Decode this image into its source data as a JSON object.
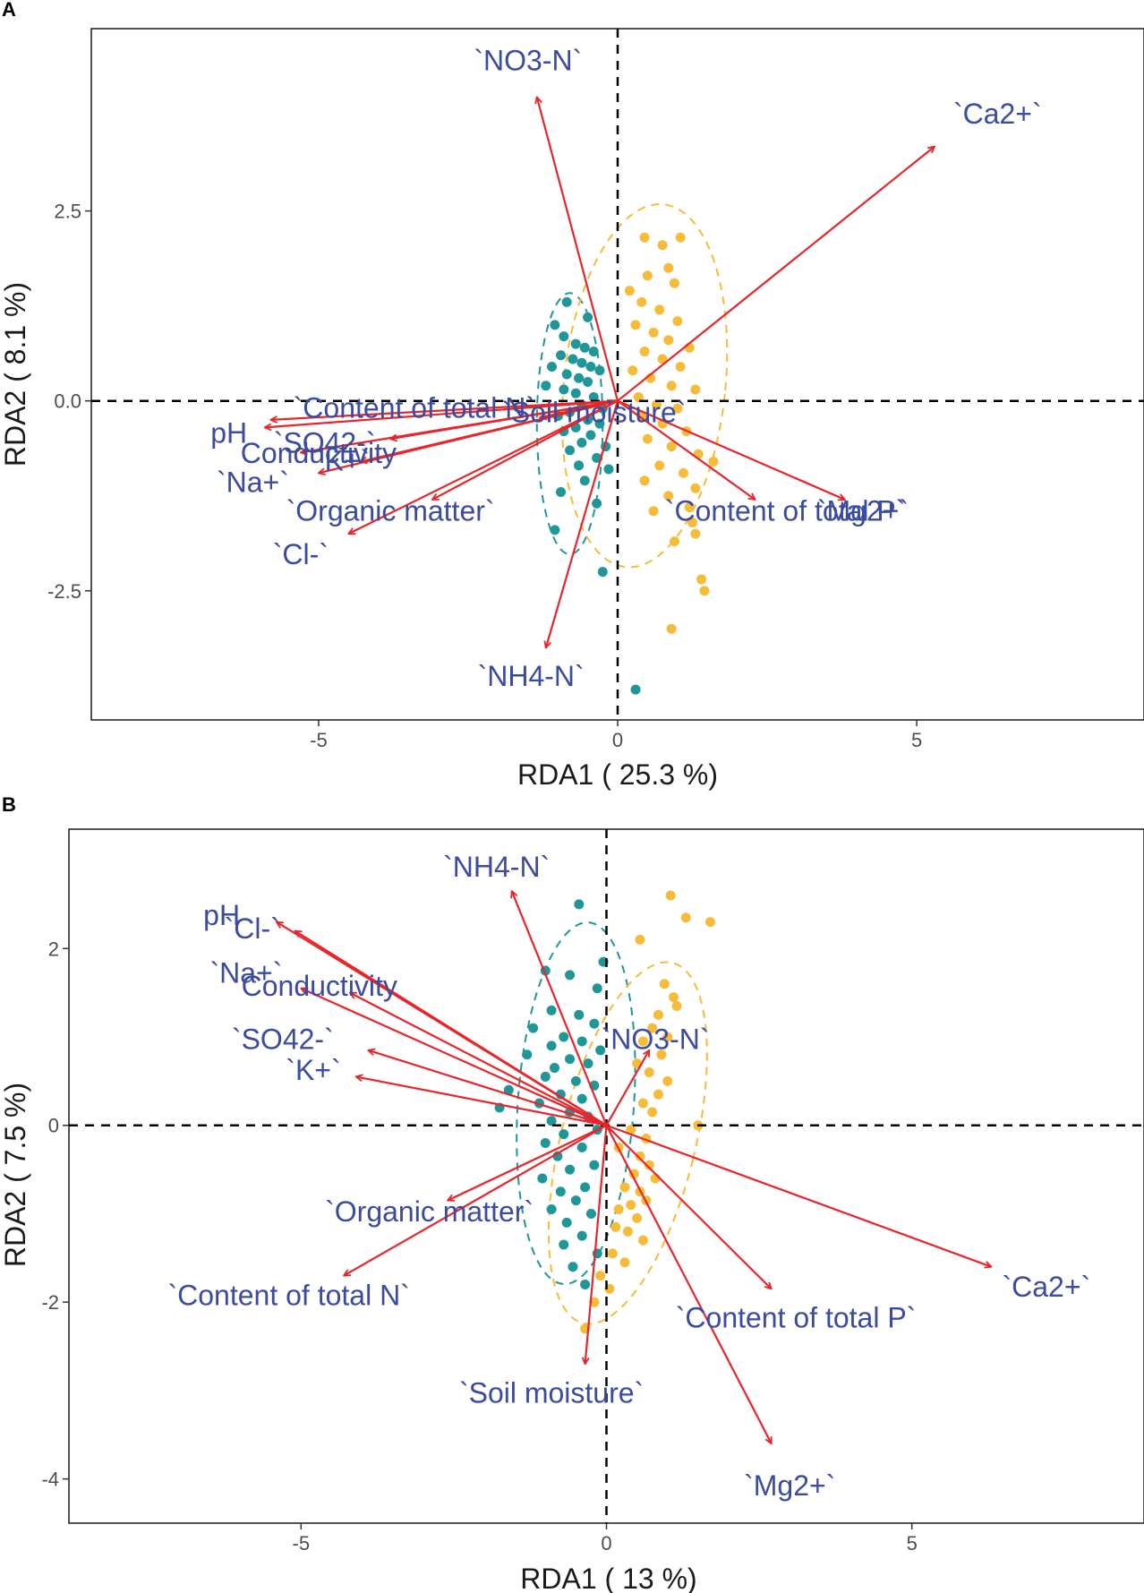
{
  "chart_data": [
    {
      "type": "scatter",
      "panel": "A",
      "xlabel": "RDA1 ( 25.3 %)",
      "ylabel": "RDA2 ( 8.1 %)",
      "xlim": [
        -8.8,
        8.8
      ],
      "ylim": [
        -4.2,
        4.9
      ],
      "xticks": [
        -5,
        0,
        5
      ],
      "yticks": [
        -2.5,
        0.0,
        2.5
      ],
      "ytick_labels": [
        "-2.5",
        "0.0",
        "2.5"
      ],
      "colors": {
        "group1": "#1f9697",
        "group2": "#f7bb3a",
        "arrow": "#e8252a",
        "label": "#3b4ba0"
      },
      "arrows": [
        {
          "label": "`NO3-N`",
          "x": -1.35,
          "y": 4.0,
          "lx": -1.5,
          "ly": 4.45
        },
        {
          "label": "`Ca2+`",
          "x": 5.3,
          "y": 3.35,
          "lx": 6.35,
          "ly": 3.75
        },
        {
          "label": "`Content of total N`",
          "x": -5.8,
          "y": -0.25,
          "lx": -3.4,
          "ly": -0.12
        },
        {
          "label": "`Soil moisture`",
          "x": -1.3,
          "y": -0.22,
          "lx": -0.4,
          "ly": -0.18
        },
        {
          "label": "pH",
          "x": -5.9,
          "y": -0.35,
          "lx": -6.5,
          "ly": -0.45
        },
        {
          "label": "`SO42-`",
          "x": -3.8,
          "y": -0.5,
          "lx": -4.9,
          "ly": -0.58
        },
        {
          "label": "Conductivity",
          "x": -5.3,
          "y": -0.68,
          "lx": -5.0,
          "ly": -0.72
        },
        {
          "label": "`K+`",
          "x": -4.3,
          "y": -0.8,
          "lx": -4.6,
          "ly": -0.82
        },
        {
          "label": "`Na+`",
          "x": -5.0,
          "y": -0.95,
          "lx": -6.1,
          "ly": -1.1
        },
        {
          "label": "`Organic matter`",
          "x": -3.1,
          "y": -1.3,
          "lx": -3.8,
          "ly": -1.48
        },
        {
          "label": "`Cl-`",
          "x": -4.5,
          "y": -1.75,
          "lx": -5.3,
          "ly": -2.05
        },
        {
          "label": "`Content of total P`",
          "x": 2.3,
          "y": -1.3,
          "lx": 2.8,
          "ly": -1.48
        },
        {
          "label": "`Mg2+`",
          "x": 3.8,
          "y": -1.3,
          "lx": 4.1,
          "ly": -1.48
        },
        {
          "label": "`NH4-N`",
          "x": -1.2,
          "y": -3.25,
          "lx": -1.45,
          "ly": -3.65
        }
      ],
      "series": [
        {
          "name": "group1",
          "color": "#1f9697",
          "points": [
            [
              -0.85,
              1.3
            ],
            [
              -0.5,
              1.1
            ],
            [
              -1.05,
              1.0
            ],
            [
              -0.9,
              0.85
            ],
            [
              -0.7,
              0.75
            ],
            [
              -0.55,
              0.7
            ],
            [
              -0.4,
              0.65
            ],
            [
              -0.95,
              0.6
            ],
            [
              -0.75,
              0.55
            ],
            [
              -0.6,
              0.5
            ],
            [
              -0.45,
              0.45
            ],
            [
              -1.1,
              0.45
            ],
            [
              -0.3,
              0.4
            ],
            [
              -0.85,
              0.35
            ],
            [
              -0.65,
              0.3
            ],
            [
              -0.5,
              0.25
            ],
            [
              -1.2,
              0.2
            ],
            [
              -0.9,
              0.15
            ],
            [
              -0.7,
              0.1
            ],
            [
              -0.4,
              0.05
            ],
            [
              -0.6,
              -0.05
            ],
            [
              -0.25,
              -0.1
            ],
            [
              -0.8,
              -0.15
            ],
            [
              -1.0,
              -0.2
            ],
            [
              -0.5,
              -0.25
            ],
            [
              -0.3,
              -0.3
            ],
            [
              -0.7,
              -0.35
            ],
            [
              -0.9,
              -0.4
            ],
            [
              -0.45,
              -0.45
            ],
            [
              -0.6,
              -0.55
            ],
            [
              -0.2,
              -0.6
            ],
            [
              -0.8,
              -0.65
            ],
            [
              -0.35,
              -0.75
            ],
            [
              -0.65,
              -0.85
            ],
            [
              -0.15,
              -0.9
            ],
            [
              -0.55,
              -1.05
            ],
            [
              -0.95,
              -1.2
            ],
            [
              -0.35,
              -1.35
            ],
            [
              -1.05,
              -1.7
            ],
            [
              -0.25,
              -2.25
            ],
            [
              0.3,
              -3.8
            ]
          ]
        },
        {
          "name": "group2",
          "color": "#f7bb3a",
          "points": [
            [
              0.45,
              2.15
            ],
            [
              0.75,
              2.05
            ],
            [
              1.05,
              2.15
            ],
            [
              0.85,
              1.75
            ],
            [
              0.5,
              1.65
            ],
            [
              0.95,
              1.55
            ],
            [
              0.2,
              1.45
            ],
            [
              0.4,
              1.3
            ],
            [
              0.7,
              1.2
            ],
            [
              1.0,
              1.05
            ],
            [
              0.3,
              1.0
            ],
            [
              0.6,
              0.9
            ],
            [
              0.85,
              0.8
            ],
            [
              1.2,
              0.7
            ],
            [
              0.45,
              0.65
            ],
            [
              0.75,
              0.55
            ],
            [
              1.05,
              0.45
            ],
            [
              0.25,
              0.4
            ],
            [
              0.55,
              0.3
            ],
            [
              0.9,
              0.2
            ],
            [
              1.3,
              0.15
            ],
            [
              0.35,
              0.05
            ],
            [
              0.65,
              -0.05
            ],
            [
              1.0,
              -0.1
            ],
            [
              0.4,
              -0.2
            ],
            [
              0.75,
              -0.3
            ],
            [
              1.15,
              -0.4
            ],
            [
              0.5,
              -0.5
            ],
            [
              0.9,
              -0.6
            ],
            [
              1.35,
              -0.7
            ],
            [
              1.6,
              -0.8
            ],
            [
              0.7,
              -0.85
            ],
            [
              1.1,
              -0.95
            ],
            [
              0.45,
              -1.05
            ],
            [
              1.3,
              -1.15
            ],
            [
              0.85,
              -1.25
            ],
            [
              1.2,
              -1.4
            ],
            [
              0.6,
              -1.45
            ],
            [
              1.25,
              -1.6
            ],
            [
              1.3,
              -1.75
            ],
            [
              0.95,
              -1.85
            ],
            [
              1.4,
              -2.35
            ],
            [
              1.45,
              -2.5
            ],
            [
              0.9,
              -3.0
            ]
          ]
        }
      ],
      "ellipses": [
        {
          "group": "group1",
          "cx": -0.8,
          "cy": -0.3,
          "rx": 0.55,
          "ry": 1.72
        },
        {
          "group": "group2",
          "cx": 0.45,
          "cy": 0.2,
          "rx": 1.35,
          "ry": 2.4,
          "rotate_deg": 6
        }
      ]
    },
    {
      "type": "scatter",
      "panel": "B",
      "xlabel": "RDA1 ( 13 %)",
      "ylabel": "RDA2 ( 7.5 %)",
      "xlim": [
        -8.8,
        8.8
      ],
      "ylim": [
        -4.5,
        3.35
      ],
      "xticks": [
        -5,
        0,
        5
      ],
      "yticks": [
        -4,
        -2,
        0,
        2
      ],
      "ytick_labels": [
        "-4",
        "-2",
        "0",
        "2"
      ],
      "colors": {
        "group1": "#1f9697",
        "group2": "#f7bb3a",
        "arrow": "#e8252a",
        "label": "#3b4ba0"
      },
      "arrows": [
        {
          "label": "`NH4-N`",
          "x": -1.55,
          "y": 2.65,
          "lx": -1.8,
          "ly": 2.9
        },
        {
          "label": "pH",
          "x": -5.4,
          "y": 2.3,
          "lx": -6.3,
          "ly": 2.35
        },
        {
          "label": "`Cl-`",
          "x": -5.1,
          "y": 2.2,
          "lx": -5.8,
          "ly": 2.2
        },
        {
          "label": "`Na+`",
          "x": -5.0,
          "y": 1.55,
          "lx": -5.9,
          "ly": 1.7
        },
        {
          "label": "Conductivity",
          "x": -4.2,
          "y": 1.5,
          "lx": -4.7,
          "ly": 1.55
        },
        {
          "label": "`SO42-`",
          "x": -3.9,
          "y": 0.85,
          "lx": -5.3,
          "ly": 0.95
        },
        {
          "label": "`K+`",
          "x": -4.1,
          "y": 0.55,
          "lx": -4.8,
          "ly": 0.6
        },
        {
          "label": "`NO3-N`",
          "x": 0.7,
          "y": 0.85,
          "lx": 0.8,
          "ly": 0.95
        },
        {
          "label": "`Organic matter`",
          "x": -2.6,
          "y": -0.85,
          "lx": -2.9,
          "ly": -1.0
        },
        {
          "label": "`Content of total N`",
          "x": -4.3,
          "y": -1.7,
          "lx": -5.2,
          "ly": -1.95
        },
        {
          "label": "`Ca2+`",
          "x": 6.3,
          "y": -1.6,
          "lx": 7.2,
          "ly": -1.85
        },
        {
          "label": "`Content of total P`",
          "x": 2.7,
          "y": -1.85,
          "lx": 3.1,
          "ly": -2.2
        },
        {
          "label": "`Soil moisture`",
          "x": -0.35,
          "y": -2.7,
          "lx": -0.9,
          "ly": -3.05
        },
        {
          "label": "`Mg2+`",
          "x": 2.7,
          "y": -3.6,
          "lx": 3.0,
          "ly": -4.1
        }
      ],
      "series": [
        {
          "name": "group1",
          "color": "#1f9697",
          "points": [
            [
              -0.45,
              2.5
            ],
            [
              -0.05,
              1.85
            ],
            [
              -1.0,
              1.75
            ],
            [
              -0.6,
              1.7
            ],
            [
              -0.15,
              1.55
            ],
            [
              -0.9,
              1.3
            ],
            [
              -0.45,
              1.25
            ],
            [
              -0.2,
              1.15
            ],
            [
              -1.2,
              1.1
            ],
            [
              -0.7,
              1.0
            ],
            [
              -0.4,
              0.95
            ],
            [
              -0.9,
              0.9
            ],
            [
              -0.1,
              0.85
            ],
            [
              -1.3,
              0.8
            ],
            [
              -0.6,
              0.75
            ],
            [
              -0.3,
              0.7
            ],
            [
              -0.85,
              0.65
            ],
            [
              -1.0,
              0.55
            ],
            [
              -0.5,
              0.5
            ],
            [
              -0.2,
              0.45
            ],
            [
              -1.6,
              0.4
            ],
            [
              -0.75,
              0.35
            ],
            [
              -0.4,
              0.3
            ],
            [
              -1.1,
              0.25
            ],
            [
              -1.75,
              0.2
            ],
            [
              -0.6,
              0.15
            ],
            [
              -0.3,
              0.1
            ],
            [
              -0.9,
              0.05
            ],
            [
              -0.15,
              -0.05
            ],
            [
              -0.7,
              -0.1
            ],
            [
              -1.0,
              -0.2
            ],
            [
              -0.4,
              -0.25
            ],
            [
              -0.8,
              -0.35
            ],
            [
              -0.2,
              -0.45
            ],
            [
              -0.6,
              -0.5
            ],
            [
              -1.05,
              -0.6
            ],
            [
              -0.35,
              -0.7
            ],
            [
              -0.75,
              -0.75
            ],
            [
              -0.5,
              -0.85
            ],
            [
              -0.9,
              -0.95
            ],
            [
              -0.25,
              -1.0
            ],
            [
              -0.65,
              -1.1
            ],
            [
              -0.4,
              -1.25
            ],
            [
              -0.7,
              -1.35
            ],
            [
              -0.15,
              -1.45
            ],
            [
              -0.55,
              -1.6
            ],
            [
              -0.35,
              -1.8
            ]
          ]
        },
        {
          "name": "group2",
          "color": "#f7bb3a",
          "points": [
            [
              1.05,
              2.6
            ],
            [
              1.3,
              2.35
            ],
            [
              1.7,
              2.3
            ],
            [
              0.55,
              2.1
            ],
            [
              0.95,
              1.6
            ],
            [
              1.1,
              1.45
            ],
            [
              1.15,
              1.35
            ],
            [
              0.85,
              1.25
            ],
            [
              0.75,
              1.1
            ],
            [
              1.0,
              1.0
            ],
            [
              0.6,
              0.95
            ],
            [
              0.9,
              0.8
            ],
            [
              0.5,
              0.7
            ],
            [
              0.7,
              0.6
            ],
            [
              1.0,
              0.5
            ],
            [
              0.85,
              0.35
            ],
            [
              0.6,
              0.25
            ],
            [
              0.75,
              0.15
            ],
            [
              1.5,
              0.0
            ],
            [
              0.4,
              -0.05
            ],
            [
              0.65,
              -0.15
            ],
            [
              0.2,
              -0.25
            ],
            [
              0.55,
              -0.35
            ],
            [
              0.7,
              -0.45
            ],
            [
              0.45,
              -0.55
            ],
            [
              0.8,
              -0.6
            ],
            [
              0.3,
              -0.7
            ],
            [
              0.55,
              -0.75
            ],
            [
              0.65,
              -0.85
            ],
            [
              0.4,
              -0.9
            ],
            [
              0.2,
              -0.95
            ],
            [
              0.5,
              -1.05
            ],
            [
              0.15,
              -1.15
            ],
            [
              0.35,
              -1.2
            ],
            [
              0.6,
              -1.3
            ],
            [
              0.1,
              -1.45
            ],
            [
              0.3,
              -1.55
            ],
            [
              -0.1,
              -1.7
            ],
            [
              0.05,
              -1.85
            ],
            [
              -0.2,
              -2.0
            ],
            [
              -0.35,
              -2.3
            ]
          ]
        }
      ],
      "ellipses": [
        {
          "group": "group1",
          "cx": -0.5,
          "cy": 0.25,
          "rx": 0.95,
          "ry": 2.05,
          "rotate_deg": 4
        },
        {
          "group": "group2",
          "cx": 0.35,
          "cy": -0.2,
          "rx": 1.1,
          "ry": 2.1,
          "rotate_deg": 14
        }
      ]
    }
  ]
}
